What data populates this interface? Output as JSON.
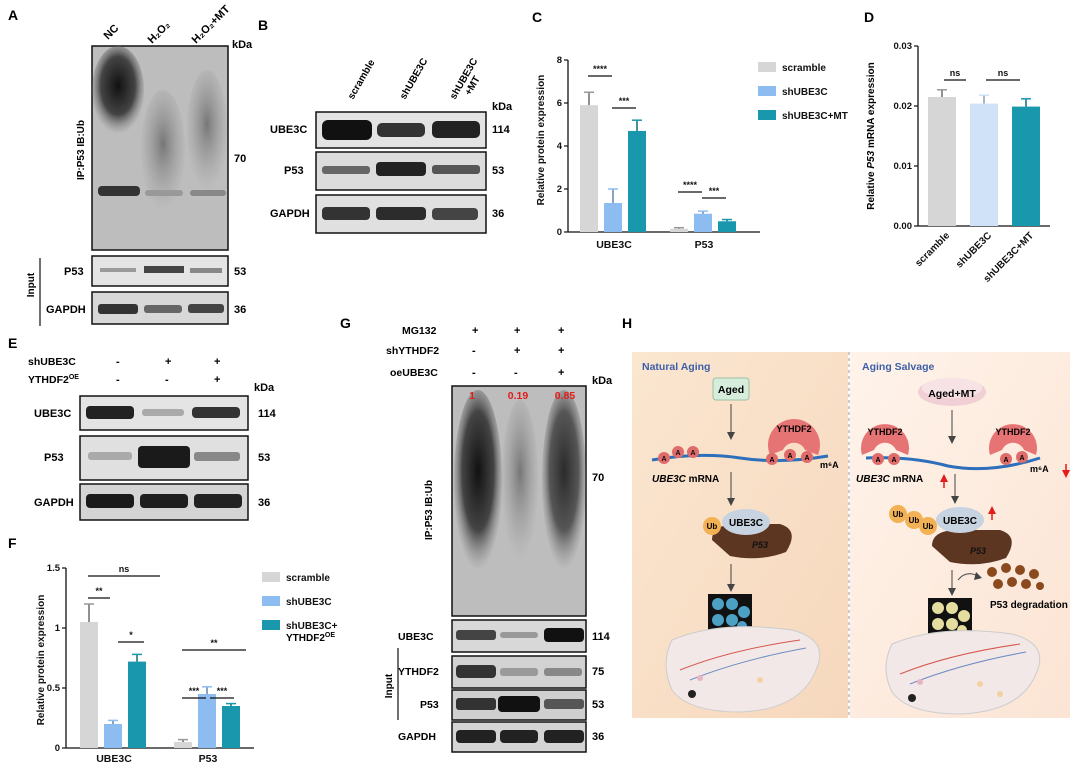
{
  "colors": {
    "scramble": "#d6d6d6",
    "shUBE3C": "#8dbdf0",
    "treat": "#1897ad",
    "dPale": "#cfe2f7",
    "red": "#e41b1b",
    "salmon": "#e97070",
    "brown": "#5c3620",
    "ube3cFill": "#c7d3e0",
    "agedFill": "#d7eddc",
    "bgH": "#f8e9db"
  },
  "kda": "kDa",
  "panelA": {
    "letter": "A",
    "lanes": [
      "NC",
      "H₂O₂",
      "H₂O₂+MT"
    ],
    "ylabel": "IP:P53 IB:Ub",
    "mw": [
      "70",
      "53",
      "36"
    ],
    "blots": [
      "P53",
      "GAPDH"
    ],
    "input": "Input"
  },
  "panelB": {
    "letter": "B",
    "lanes": [
      "scramble",
      "shUBE3C",
      "shUBE3C",
      "+MT"
    ],
    "blots": [
      "UBE3C",
      "P53",
      "GAPDH"
    ],
    "mw": [
      "114",
      "53",
      "36"
    ]
  },
  "panelE": {
    "letter": "E",
    "rows": [
      {
        "label": "shUBE3C",
        "vals": [
          "-",
          "+",
          "+"
        ]
      },
      {
        "label": "YTHDF2",
        "sup": "OE",
        "vals": [
          "-",
          "-",
          "+"
        ]
      }
    ],
    "blots": [
      "UBE3C",
      "P53",
      "GAPDH"
    ],
    "mw": [
      "114",
      "53",
      "36"
    ]
  },
  "panelG": {
    "letter": "G",
    "rows": [
      {
        "label": "MG132",
        "vals": [
          "+",
          "+",
          "+"
        ]
      },
      {
        "label": "shYTHDF2",
        "vals": [
          "-",
          "+",
          "+"
        ]
      },
      {
        "label": "oeUBE3C",
        "vals": [
          "-",
          "-",
          "+"
        ]
      }
    ],
    "ratios": [
      "1",
      "0.19",
      "0.85"
    ],
    "ylabel": "IP:P53 IB:Ub",
    "mw": [
      "70",
      "114",
      "75",
      "53",
      "36"
    ],
    "blots": [
      "UBE3C",
      "YTHDF2",
      "P53",
      "GAPDH"
    ],
    "input": "Input"
  },
  "chart_data": [
    {
      "panel": "C",
      "type": "bar",
      "ylabel": "Relative protein expression",
      "ylim": [
        0,
        8
      ],
      "yticks": [
        "0",
        "2",
        "4",
        "6",
        "8"
      ],
      "categories": [
        "UBE3C",
        "P53"
      ],
      "series": [
        {
          "name": "scramble",
          "values": [
            5.9,
            0.15
          ],
          "err": [
            0.6,
            0.05
          ]
        },
        {
          "name": "shUBE3C",
          "values": [
            1.35,
            0.85
          ],
          "err": [
            0.65,
            0.12
          ]
        },
        {
          "name": "shUBE3C+MT",
          "values": [
            4.7,
            0.5
          ],
          "err": [
            0.5,
            0.08
          ]
        }
      ],
      "sig": [
        "****",
        "***",
        "****",
        "***"
      ]
    },
    {
      "panel": "D",
      "type": "bar",
      "ylabel_pre": "Relative ",
      "ylabel_it": "P53",
      "ylabel_post": " mRNA expression",
      "ylim": [
        0,
        0.03
      ],
      "yticks": [
        "0.00",
        "0.01",
        "0.02",
        "0.03"
      ],
      "categories": [
        "scramble",
        "shUBE3C",
        "shUBE3C+MT"
      ],
      "values": [
        0.0215,
        0.0204,
        0.0199
      ],
      "err": [
        0.0012,
        0.0014,
        0.0013
      ],
      "sig": [
        "ns",
        "ns"
      ]
    },
    {
      "panel": "F",
      "type": "bar",
      "ylabel": "Relative protein expression",
      "ylim": [
        0,
        1.5
      ],
      "yticks": [
        "0",
        "0.5",
        "1",
        "1.5"
      ],
      "categories": [
        "UBE3C",
        "P53"
      ],
      "series": [
        {
          "name": "scramble",
          "values": [
            1.05,
            0.05
          ],
          "err": [
            0.15,
            0.02
          ]
        },
        {
          "name": "shUBE3C",
          "values": [
            0.2,
            0.45
          ],
          "err": [
            0.03,
            0.06
          ]
        },
        {
          "name": "shUBE3C+ YTHDF2OE",
          "values": [
            0.72,
            0.35
          ],
          "err": [
            0.06,
            0.02
          ]
        }
      ],
      "sig": [
        "ns",
        "**",
        "*",
        "**",
        "***",
        "***"
      ]
    }
  ],
  "legendF": [
    "scramble",
    "shUBE3C",
    "shUBE3C+",
    "YTHDF2",
    "OE"
  ],
  "panelH": {
    "letter": "H",
    "left_title": "Natural Aging",
    "right_title": "Aging Salvage",
    "aged": "Aged",
    "aged_mt": "Aged+MT",
    "ythdf2": "YTHDF2",
    "m6a": "m⁶A",
    "mrna_it": "UBE3C",
    "mrna": " mRNA",
    "ub": "Ub",
    "ube3c": "UBE3C",
    "p53": "P53",
    "degradation": "P53 degradation",
    "a": "A"
  }
}
